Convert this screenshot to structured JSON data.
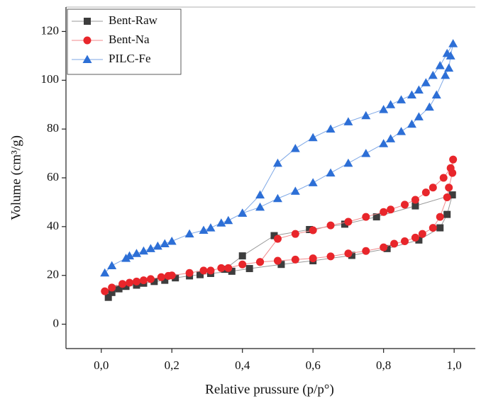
{
  "chart_data": {
    "type": "line",
    "xlabel": "Relative prussure (p/p°)",
    "ylabel": "Volume (cm³/g)",
    "xlim": [
      -0.1,
      1.06
    ],
    "ylim": [
      -10,
      130
    ],
    "xticks": [
      {
        "value": 0,
        "label": "0,0"
      },
      {
        "value": 0.2,
        "label": "0,2"
      },
      {
        "value": 0.4,
        "label": "0,4"
      },
      {
        "value": 0.6,
        "label": "0,6"
      },
      {
        "value": 0.8,
        "label": "0,8"
      },
      {
        "value": 1,
        "label": "1,0"
      }
    ],
    "yticks": [
      0,
      20,
      40,
      60,
      80,
      100,
      120
    ],
    "legend": "upper-left",
    "series": [
      {
        "name": "Bent-Raw",
        "color": "#3d3d3d",
        "line_color": "#9a9a9a",
        "marker": "square",
        "x": [
          0.02,
          0.03,
          0.05,
          0.07,
          0.1,
          0.12,
          0.15,
          0.18,
          0.21,
          0.25,
          0.28,
          0.31,
          0.37,
          0.42,
          0.51,
          0.6,
          0.71,
          0.81,
          0.9,
          0.96,
          0.98,
          0.995,
          0.89,
          0.78,
          0.69,
          0.59,
          0.49,
          0.4,
          0.35
        ],
        "values": [
          11,
          13,
          14.5,
          15.5,
          16,
          16.8,
          17.5,
          18,
          19,
          19.8,
          20.3,
          20.8,
          21.7,
          22.8,
          24.5,
          26,
          28.2,
          31,
          34.5,
          39.5,
          45,
          53,
          48.5,
          44,
          41,
          38.8,
          36.3,
          28,
          22.5
        ]
      },
      {
        "name": "Bent-Na",
        "color": "#e8262b",
        "line_color": "#f08a8c",
        "marker": "circle",
        "x": [
          0.01,
          0.03,
          0.06,
          0.08,
          0.1,
          0.12,
          0.14,
          0.17,
          0.19,
          0.2,
          0.25,
          0.29,
          0.31,
          0.34,
          0.36,
          0.4,
          0.45,
          0.5,
          0.55,
          0.6,
          0.65,
          0.7,
          0.75,
          0.8,
          0.83,
          0.86,
          0.89,
          0.91,
          0.94,
          0.96,
          0.98,
          0.985,
          0.995,
          0.997,
          0.99,
          0.97,
          0.94,
          0.92,
          0.89,
          0.86,
          0.82,
          0.8,
          0.75,
          0.7,
          0.65,
          0.6,
          0.55,
          0.5,
          0.45
        ],
        "values": [
          13.5,
          15,
          16.5,
          17,
          17.5,
          18,
          18.5,
          19.3,
          19.8,
          20,
          21,
          22,
          22,
          23,
          23,
          24.5,
          25.5,
          26,
          26.5,
          27,
          27.8,
          29,
          30,
          31.5,
          33,
          34,
          35.5,
          37,
          39.5,
          44,
          52,
          56,
          62,
          67.5,
          64,
          60,
          56,
          54,
          51,
          49,
          47,
          46,
          44,
          42,
          40.5,
          38.5,
          37,
          35,
          25.5
        ]
      },
      {
        "name": "PILC-Fe",
        "color": "#2d6fd6",
        "line_color": "#7da7e6",
        "marker": "triangle",
        "x": [
          0.01,
          0.03,
          0.07,
          0.08,
          0.1,
          0.12,
          0.14,
          0.16,
          0.18,
          0.2,
          0.25,
          0.29,
          0.31,
          0.34,
          0.36,
          0.4,
          0.45,
          0.5,
          0.55,
          0.6,
          0.65,
          0.7,
          0.75,
          0.8,
          0.82,
          0.85,
          0.88,
          0.9,
          0.93,
          0.95,
          0.975,
          0.985,
          0.99,
          0.997,
          0.98,
          0.96,
          0.94,
          0.92,
          0.9,
          0.88,
          0.85,
          0.82,
          0.8,
          0.75,
          0.7,
          0.65,
          0.6,
          0.55,
          0.5,
          0.45,
          0.4
        ],
        "values": [
          21,
          24,
          27,
          28,
          29,
          30,
          31,
          32,
          33,
          34,
          37,
          38.5,
          39.5,
          41.5,
          42.5,
          45.5,
          48,
          51.5,
          54.5,
          58,
          62,
          66,
          70,
          74,
          76,
          79,
          82,
          85,
          89,
          94,
          102,
          105,
          110,
          115,
          111,
          106,
          102,
          99,
          96,
          94,
          92,
          90,
          88,
          85.5,
          83,
          80,
          76.5,
          72,
          66,
          53,
          45.5
        ]
      }
    ]
  }
}
